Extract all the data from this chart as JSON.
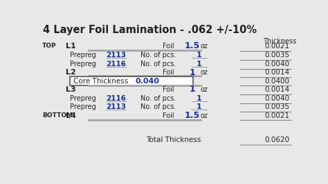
{
  "title": "4 Layer Foil Lamination - .062 +/-10%",
  "title_fontsize": 10.5,
  "bg_color": "#e8e8e8",
  "header_thickness": "Thickness",
  "text_color": "#222222",
  "blue_color": "#1a3099",
  "bar_color": "#aaaaaa",
  "bar_color2": "#888888",
  "line_color": "#888888",
  "rows": [
    {
      "type": "foil",
      "label_left": "TOP",
      "label": "L1",
      "foil_val": "1.5",
      "unit": "oz",
      "thickness": "0.0021",
      "bar_below": true
    },
    {
      "type": "prepreg",
      "label": "Prepreg",
      "code": "2113",
      "qty": "1",
      "thickness": "0.0035"
    },
    {
      "type": "prepreg",
      "label": "Prepreg",
      "code": "2116",
      "qty": "1",
      "thickness": "0.0040"
    },
    {
      "type": "foil",
      "label_left": "",
      "label": "L2",
      "foil_val": "1",
      "unit": "oz",
      "thickness": "0.0014",
      "bar_below": false
    },
    {
      "type": "core",
      "label": "Core Thickness",
      "code": "0.040",
      "thickness": "0.0400"
    },
    {
      "type": "foil",
      "label_left": "",
      "label": "L3",
      "foil_val": "1",
      "unit": "oz",
      "thickness": "0.0014",
      "bar_below": false
    },
    {
      "type": "prepreg",
      "label": "Prepreg",
      "code": "2116",
      "qty": "1",
      "thickness": "0.0040"
    },
    {
      "type": "prepreg",
      "label": "Prepreg",
      "code": "2113",
      "qty": "1",
      "thickness": "0.0035"
    },
    {
      "type": "foil",
      "label_left": "BOTTOM",
      "label": "L4",
      "foil_val": "1.5",
      "unit": "oz",
      "thickness": "0.0021",
      "bar_below": true
    }
  ],
  "total_label": "Total Thickness",
  "total_value": "0.0620"
}
